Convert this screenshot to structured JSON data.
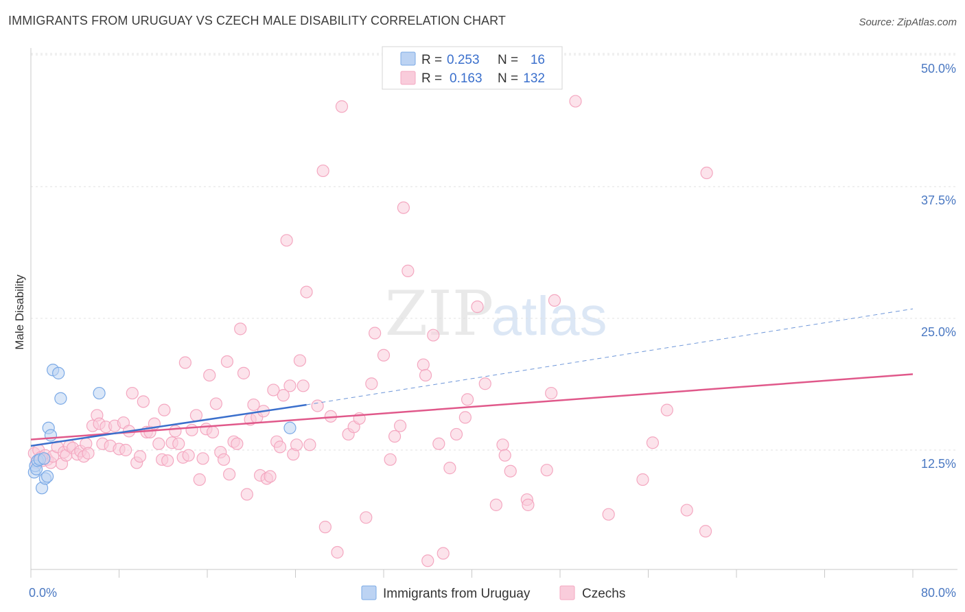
{
  "title": "IMMIGRANTS FROM URUGUAY VS CZECH MALE DISABILITY CORRELATION CHART",
  "source": "Source: ZipAtlas.com",
  "watermark": {
    "zip": "ZIP",
    "atlas": "atlas"
  },
  "legend_top": [
    {
      "r_label": "R =",
      "r_value": "0.253",
      "n_label": "N =",
      "n_value": "16",
      "color": "#a9c8f0"
    },
    {
      "r_label": "R =",
      "r_value": "0.163",
      "n_label": "N =",
      "n_value": "132",
      "color": "#f6b8cc"
    }
  ],
  "chart_data": {
    "type": "scatter",
    "title": "IMMIGRANTS FROM URUGUAY VS CZECH MALE DISABILITY CORRELATION CHART",
    "xlabel": "",
    "ylabel": "Male Disability",
    "xlim": [
      0,
      80
    ],
    "ylim": [
      0,
      50
    ],
    "x_tick_labels": [
      "0.0%",
      "80.0%"
    ],
    "y_ticks": [
      12.5,
      25.0,
      37.5,
      50.0
    ],
    "y_tick_labels": [
      "12.5%",
      "25.0%",
      "37.5%",
      "50.0%"
    ],
    "grid": true,
    "legend_position": "bottom",
    "series": [
      {
        "name": "Immigrants from Uruguay",
        "color": "#7aa9e6",
        "trend_color": "#3a6fcc",
        "trend": {
          "x0": 0,
          "y0": 12.9,
          "x1": 25.0,
          "y1": 16.8,
          "dash_to_x": 80,
          "dash_to_y": 25.9
        },
        "points": [
          [
            0.3,
            10.4
          ],
          [
            0.4,
            11.0
          ],
          [
            0.5,
            10.7
          ],
          [
            0.6,
            11.5
          ],
          [
            0.8,
            11.6
          ],
          [
            1.0,
            8.9
          ],
          [
            1.2,
            11.7
          ],
          [
            1.3,
            9.8
          ],
          [
            1.5,
            10.0
          ],
          [
            1.6,
            14.6
          ],
          [
            1.8,
            13.9
          ],
          [
            2.0,
            20.1
          ],
          [
            2.5,
            19.8
          ],
          [
            2.7,
            17.4
          ],
          [
            6.2,
            17.9
          ],
          [
            23.5,
            14.6
          ]
        ]
      },
      {
        "name": "Czechs",
        "color": "#f4a7c0",
        "trend_color": "#e0588a",
        "trend": {
          "x0": 0,
          "y0": 13.5,
          "x1": 80,
          "y1": 19.7
        },
        "points": [
          [
            0.3,
            12.2
          ],
          [
            0.5,
            11.3
          ],
          [
            0.7,
            12.5
          ],
          [
            0.9,
            11.8
          ],
          [
            1.1,
            11.5
          ],
          [
            1.3,
            12.0
          ],
          [
            1.5,
            11.6
          ],
          [
            1.8,
            11.3
          ],
          [
            2.0,
            11.9
          ],
          [
            2.4,
            12.8
          ],
          [
            2.8,
            11.2
          ],
          [
            3.0,
            12.3
          ],
          [
            3.2,
            12.0
          ],
          [
            3.5,
            12.9
          ],
          [
            3.8,
            12.7
          ],
          [
            4.2,
            12.1
          ],
          [
            4.5,
            12.4
          ],
          [
            4.8,
            11.9
          ],
          [
            5.0,
            13.1
          ],
          [
            5.2,
            12.2
          ],
          [
            5.6,
            14.8
          ],
          [
            6.0,
            15.8
          ],
          [
            6.2,
            15.0
          ],
          [
            6.5,
            13.1
          ],
          [
            6.8,
            14.7
          ],
          [
            7.2,
            12.9
          ],
          [
            7.6,
            14.8
          ],
          [
            8.0,
            12.6
          ],
          [
            8.4,
            15.1
          ],
          [
            8.6,
            12.5
          ],
          [
            8.9,
            14.3
          ],
          [
            9.2,
            17.9
          ],
          [
            9.6,
            11.3
          ],
          [
            9.9,
            11.9
          ],
          [
            10.2,
            17.1
          ],
          [
            10.5,
            14.2
          ],
          [
            10.8,
            14.2
          ],
          [
            11.2,
            15.0
          ],
          [
            11.6,
            13.1
          ],
          [
            11.9,
            11.6
          ],
          [
            12.1,
            16.3
          ],
          [
            12.4,
            11.5
          ],
          [
            12.8,
            13.2
          ],
          [
            13.1,
            14.3
          ],
          [
            13.4,
            13.1
          ],
          [
            13.8,
            11.8
          ],
          [
            14.0,
            20.8
          ],
          [
            14.3,
            12.0
          ],
          [
            14.6,
            14.4
          ],
          [
            15.0,
            15.8
          ],
          [
            15.3,
            9.7
          ],
          [
            15.6,
            11.7
          ],
          [
            15.9,
            14.5
          ],
          [
            16.2,
            19.6
          ],
          [
            16.5,
            14.2
          ],
          [
            16.8,
            16.9
          ],
          [
            17.2,
            12.3
          ],
          [
            17.5,
            11.6
          ],
          [
            17.8,
            20.9
          ],
          [
            18.0,
            10.2
          ],
          [
            18.4,
            13.3
          ],
          [
            18.7,
            13.1
          ],
          [
            19.0,
            24.0
          ],
          [
            19.3,
            19.8
          ],
          [
            19.6,
            8.3
          ],
          [
            19.9,
            15.4
          ],
          [
            20.2,
            16.8
          ],
          [
            20.5,
            15.6
          ],
          [
            20.8,
            10.1
          ],
          [
            21.1,
            16.2
          ],
          [
            21.4,
            9.8
          ],
          [
            21.7,
            10.0
          ],
          [
            22.0,
            18.2
          ],
          [
            22.3,
            13.3
          ],
          [
            22.6,
            12.8
          ],
          [
            22.9,
            17.7
          ],
          [
            23.2,
            32.4
          ],
          [
            23.5,
            18.6
          ],
          [
            23.8,
            12.1
          ],
          [
            24.1,
            13.0
          ],
          [
            24.4,
            21.0
          ],
          [
            24.7,
            18.6
          ],
          [
            25.0,
            27.5
          ],
          [
            25.3,
            13.0
          ],
          [
            26.0,
            16.7
          ],
          [
            26.7,
            5.2
          ],
          [
            27.2,
            15.7
          ],
          [
            27.8,
            2.8
          ],
          [
            28.2,
            45.1
          ],
          [
            28.8,
            14.0
          ],
          [
            29.3,
            14.7
          ],
          [
            29.8,
            15.5
          ],
          [
            30.4,
            6.1
          ],
          [
            30.9,
            18.8
          ],
          [
            31.2,
            23.6
          ],
          [
            32.0,
            21.5
          ],
          [
            32.6,
            11.6
          ],
          [
            33.0,
            13.8
          ],
          [
            33.5,
            14.8
          ],
          [
            33.8,
            35.5
          ],
          [
            34.2,
            29.5
          ],
          [
            35.6,
            20.6
          ],
          [
            35.8,
            19.6
          ],
          [
            36.0,
            2.0
          ],
          [
            36.5,
            23.4
          ],
          [
            37.0,
            13.1
          ],
          [
            37.4,
            2.7
          ],
          [
            38.0,
            10.8
          ],
          [
            38.6,
            14.0
          ],
          [
            39.4,
            15.6
          ],
          [
            39.6,
            17.3
          ],
          [
            40.5,
            26.1
          ],
          [
            41.2,
            18.8
          ],
          [
            42.2,
            7.3
          ],
          [
            42.8,
            13.0
          ],
          [
            43.0,
            12.0
          ],
          [
            43.5,
            10.5
          ],
          [
            45.0,
            7.8
          ],
          [
            45.1,
            7.3
          ],
          [
            46.8,
            10.6
          ],
          [
            47.2,
            17.9
          ],
          [
            47.5,
            26.7
          ],
          [
            49.4,
            45.6
          ],
          [
            52.4,
            6.4
          ],
          [
            55.5,
            9.7
          ],
          [
            56.4,
            13.2
          ],
          [
            57.7,
            16.3
          ],
          [
            59.5,
            6.8
          ],
          [
            61.2,
            4.8
          ],
          [
            61.3,
            38.8
          ],
          [
            26.5,
            39.0
          ]
        ]
      }
    ]
  }
}
